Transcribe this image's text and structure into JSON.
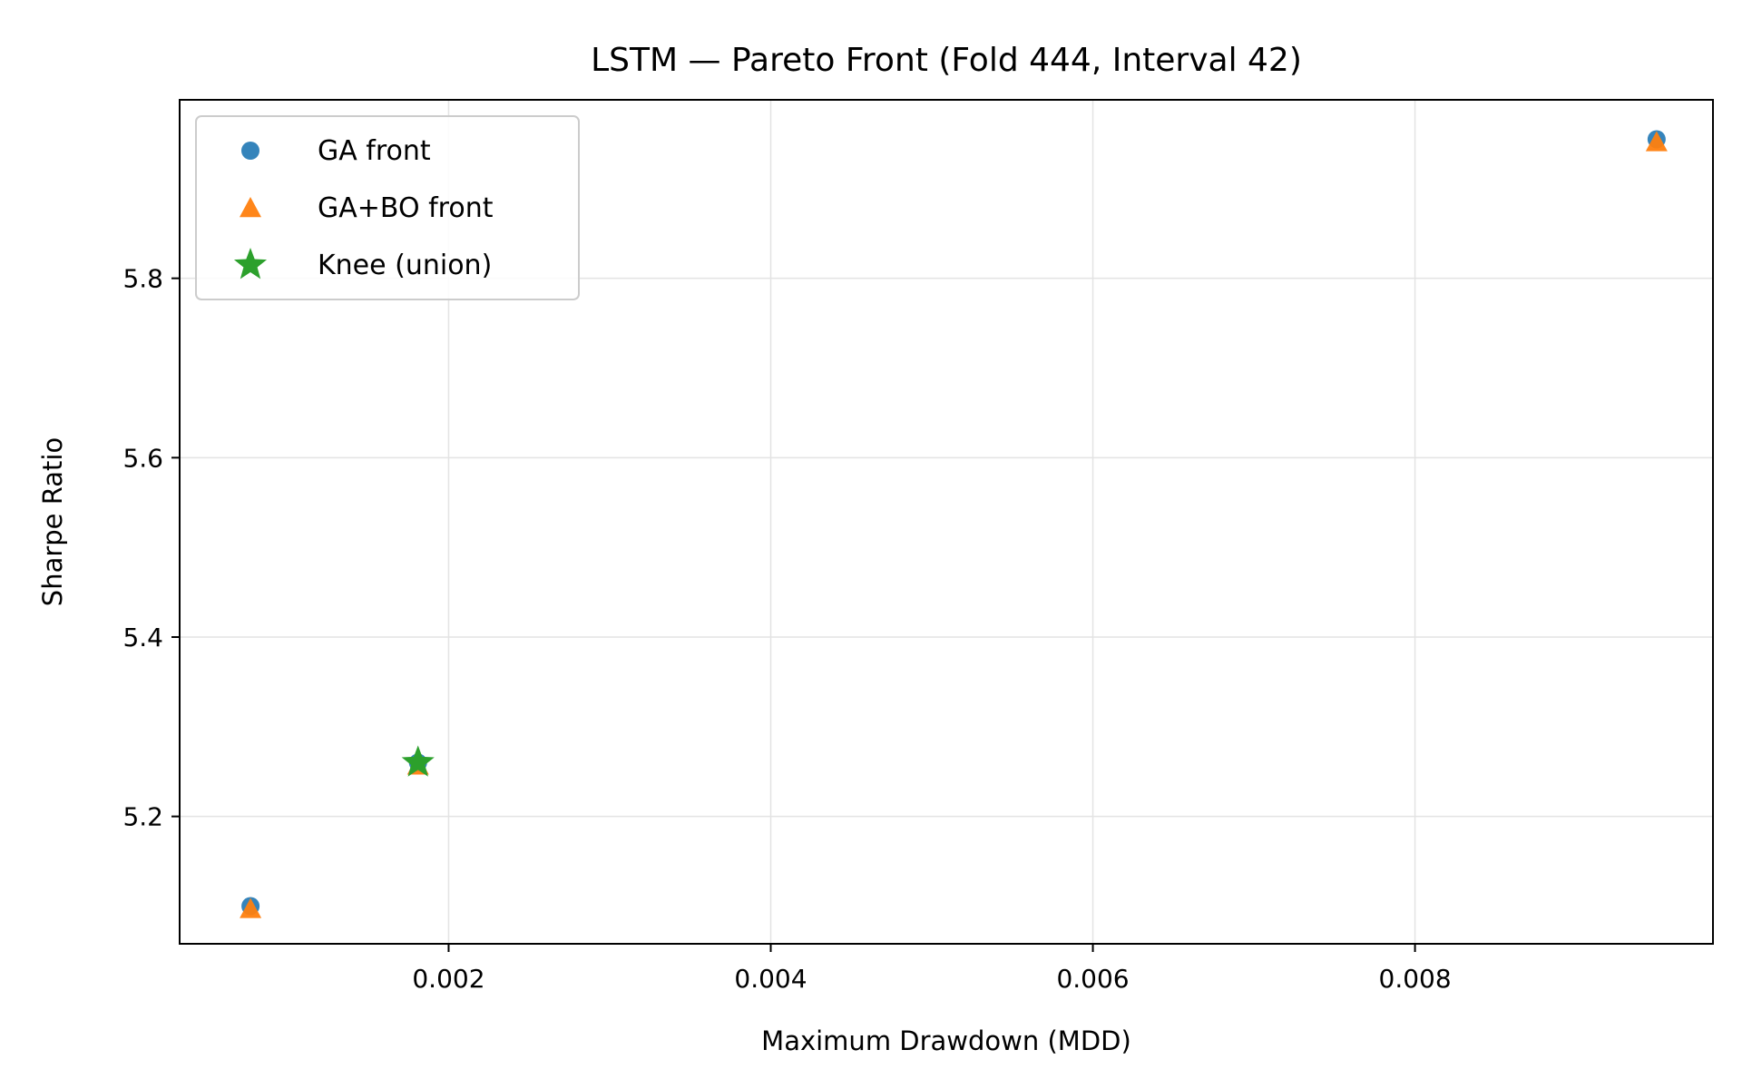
{
  "chart_data": {
    "type": "scatter",
    "title": "LSTM — Pareto Front (Fold 444, Interval 42)",
    "xlabel": "Maximum Drawdown (MDD)",
    "ylabel": "Sharpe Ratio",
    "xlim": [
      0.00033,
      0.00985
    ],
    "ylim": [
      5.058,
      5.999
    ],
    "xticks": [
      0.002,
      0.004,
      0.006,
      0.008
    ],
    "xtick_labels": [
      "0.002",
      "0.004",
      "0.006",
      "0.008"
    ],
    "yticks": [
      5.2,
      5.4,
      5.6,
      5.8
    ],
    "ytick_labels": [
      "5.2",
      "5.4",
      "5.6",
      "5.8"
    ],
    "grid": true,
    "legend_position": "top-left",
    "series": [
      {
        "name": "GA front",
        "marker": "circle",
        "color": "#1f77b4",
        "points": [
          {
            "x": 0.00077,
            "y": 5.1
          },
          {
            "x": 0.00181,
            "y": 5.26
          },
          {
            "x": 0.0095,
            "y": 5.955
          }
        ]
      },
      {
        "name": "GA+BO front",
        "marker": "triangle",
        "color": "#ff7f0e",
        "points": [
          {
            "x": 0.00077,
            "y": 5.097
          },
          {
            "x": 0.00181,
            "y": 5.257
          },
          {
            "x": 0.0095,
            "y": 5.952
          }
        ]
      },
      {
        "name": "Knee (union)",
        "marker": "star",
        "color": "#2ca02c",
        "points": [
          {
            "x": 0.00181,
            "y": 5.26
          }
        ]
      }
    ]
  }
}
